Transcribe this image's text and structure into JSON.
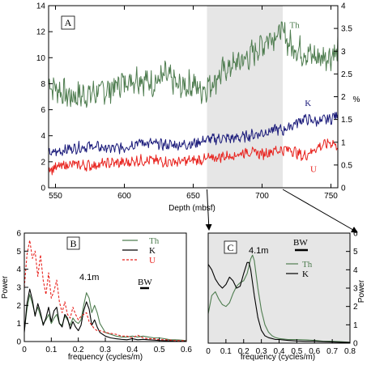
{
  "chart_data": [
    {
      "id": "A",
      "type": "line",
      "panel_label": "A",
      "xlabel": "Depth (mbsf)",
      "ylabel_left": "",
      "ylabel_right": "%",
      "xlim": [
        545,
        755
      ],
      "ylim_left": [
        0,
        14
      ],
      "ylim_right": [
        0,
        4
      ],
      "x_ticks": [
        550,
        600,
        650,
        700,
        750
      ],
      "y_ticks_left": [
        0,
        2,
        4,
        6,
        8,
        10,
        12,
        14
      ],
      "y_ticks_right": [
        0,
        0.5,
        1,
        1.5,
        2,
        2.5,
        3,
        3.5,
        4
      ],
      "shaded_range": [
        660,
        715
      ],
      "series": [
        {
          "name": "Th",
          "color": "#4f7d50",
          "axis": "left",
          "x": [
            545,
            560,
            575,
            590,
            600,
            610,
            620,
            630,
            640,
            650,
            655,
            660,
            665,
            670,
            680,
            690,
            700,
            705,
            710,
            715,
            720,
            730,
            740,
            750,
            755
          ],
          "y": [
            8.0,
            7.0,
            7.2,
            7.6,
            8.2,
            8.5,
            8.0,
            8.6,
            7.7,
            8.0,
            7.5,
            7.8,
            8.2,
            8.8,
            9.5,
            10.0,
            11.0,
            11.6,
            11.8,
            12.0,
            11.0,
            10.4,
            10.0,
            10.2,
            10.5
          ]
        },
        {
          "name": "K",
          "color": "#1a1a7a",
          "axis": "left",
          "x": [
            545,
            560,
            575,
            590,
            600,
            610,
            620,
            630,
            640,
            650,
            660,
            670,
            680,
            690,
            700,
            710,
            715,
            720,
            730,
            740,
            750,
            755
          ],
          "y": [
            2.6,
            3.0,
            3.2,
            3.0,
            3.1,
            3.5,
            3.4,
            3.3,
            3.3,
            3.4,
            3.7,
            3.8,
            3.8,
            4.0,
            4.2,
            4.5,
            4.4,
            4.7,
            5.3,
            5.1,
            5.3,
            5.7
          ]
        },
        {
          "name": "U",
          "color": "#e8231e",
          "axis": "left",
          "x": [
            545,
            560,
            575,
            590,
            600,
            610,
            620,
            630,
            640,
            650,
            660,
            670,
            680,
            690,
            700,
            710,
            715,
            720,
            730,
            740,
            750,
            755
          ],
          "y": [
            1.4,
            1.8,
            1.7,
            1.9,
            1.9,
            2.1,
            2.1,
            2.0,
            2.0,
            2.1,
            2.2,
            2.4,
            2.5,
            2.8,
            2.6,
            2.9,
            2.9,
            3.0,
            2.4,
            3.1,
            3.5,
            3.2
          ]
        }
      ],
      "annotations": [
        {
          "text": "Th",
          "x": 720,
          "y": 12.3,
          "color": "#4f7d50"
        },
        {
          "text": "K",
          "x": 731,
          "y": 6.3,
          "color": "#1a1a7a"
        },
        {
          "text": "U",
          "x": 735,
          "y": 1.2,
          "color": "#e8231e"
        }
      ]
    },
    {
      "id": "B",
      "type": "line",
      "panel_label": "B",
      "xlabel": "frequency (cycles/m)",
      "ylabel": "Power",
      "xlim": [
        0,
        0.6
      ],
      "ylim": [
        0,
        6
      ],
      "x_ticks": [
        0,
        0.1,
        0.2,
        0.3,
        0.4,
        0.5,
        0.6
      ],
      "y_ticks": [
        0,
        1,
        2,
        3,
        4,
        5,
        6
      ],
      "annotation": "4.1m",
      "bw_label": "BW",
      "legend": [
        "Th",
        "K",
        "U"
      ],
      "series": [
        {
          "name": "Th",
          "color": "#4f7d50",
          "dash": "",
          "x": [
            0,
            0.01,
            0.02,
            0.03,
            0.04,
            0.05,
            0.06,
            0.07,
            0.08,
            0.09,
            0.1,
            0.11,
            0.12,
            0.13,
            0.14,
            0.15,
            0.16,
            0.17,
            0.18,
            0.19,
            0.2,
            0.21,
            0.22,
            0.23,
            0.24,
            0.25,
            0.26,
            0.27,
            0.28,
            0.3,
            0.32,
            0.34,
            0.36,
            0.38,
            0.4,
            0.42,
            0.44,
            0.46,
            0.48,
            0.5,
            0.52,
            0.54,
            0.56,
            0.58,
            0.6
          ],
          "y": [
            0.6,
            1.8,
            2.6,
            2.1,
            1.5,
            1.9,
            1.4,
            1.0,
            1.2,
            1.5,
            1.0,
            1.3,
            1.5,
            1.0,
            0.9,
            1.4,
            1.2,
            0.9,
            1.3,
            1.1,
            1.0,
            1.2,
            2.0,
            2.7,
            2.4,
            1.6,
            2.0,
            1.6,
            1.0,
            0.5,
            0.4,
            0.3,
            0.25,
            0.25,
            0.3,
            0.25,
            0.3,
            0.25,
            0.2,
            0.2,
            0.15,
            0.1,
            0.1,
            0.08,
            0.05
          ]
        },
        {
          "name": "K",
          "color": "#000000",
          "dash": "",
          "x": [
            0,
            0.01,
            0.02,
            0.03,
            0.04,
            0.05,
            0.06,
            0.07,
            0.08,
            0.09,
            0.1,
            0.11,
            0.12,
            0.13,
            0.14,
            0.15,
            0.16,
            0.17,
            0.18,
            0.19,
            0.2,
            0.21,
            0.22,
            0.23,
            0.24,
            0.25,
            0.26,
            0.27,
            0.28,
            0.3,
            0.32,
            0.34,
            0.36,
            0.38,
            0.4,
            0.42,
            0.44,
            0.46,
            0.48,
            0.5,
            0.52,
            0.54,
            0.56,
            0.58,
            0.6
          ],
          "y": [
            0.5,
            2.1,
            2.9,
            2.3,
            1.4,
            2.1,
            1.6,
            0.9,
            1.3,
            1.9,
            1.1,
            1.7,
            1.9,
            1.0,
            0.8,
            1.5,
            1.3,
            0.7,
            1.1,
            0.8,
            0.6,
            0.9,
            1.7,
            2.2,
            1.8,
            0.9,
            1.2,
            0.8,
            0.5,
            0.3,
            0.2,
            0.15,
            0.12,
            0.1,
            0.15,
            0.1,
            0.12,
            0.1,
            0.08,
            0.06,
            0.05,
            0.04,
            0.03,
            0.02,
            0.02
          ]
        },
        {
          "name": "U",
          "color": "#e8231e",
          "dash": "3,2",
          "x": [
            0,
            0.01,
            0.02,
            0.03,
            0.04,
            0.05,
            0.06,
            0.07,
            0.08,
            0.09,
            0.1,
            0.11,
            0.12,
            0.13,
            0.14,
            0.15,
            0.16,
            0.17,
            0.18,
            0.19,
            0.2,
            0.21,
            0.22,
            0.23,
            0.24,
            0.25,
            0.26,
            0.27,
            0.28,
            0.3,
            0.32,
            0.34,
            0.36,
            0.38,
            0.4,
            0.42,
            0.44,
            0.46,
            0.48,
            0.5,
            0.52,
            0.54,
            0.56,
            0.58,
            0.6
          ],
          "y": [
            3.0,
            4.8,
            5.6,
            4.6,
            5.0,
            3.6,
            4.8,
            3.4,
            2.6,
            3.8,
            2.4,
            2.8,
            3.4,
            2.2,
            1.6,
            2.2,
            1.5,
            1.3,
            1.9,
            1.5,
            1.2,
            1.4,
            1.5,
            1.6,
            1.1,
            0.9,
            0.7,
            0.6,
            0.6,
            0.5,
            0.45,
            0.4,
            0.3,
            0.3,
            0.2,
            0.35,
            0.2,
            0.15,
            0.15,
            0.1,
            0.1,
            0.08,
            0.05,
            0.05,
            0.05
          ]
        }
      ]
    },
    {
      "id": "C",
      "type": "line",
      "panel_label": "C",
      "xlabel": "frequency (cycles/m)",
      "ylabel": "Power",
      "xlim": [
        0,
        0.8
      ],
      "ylim": [
        0,
        6
      ],
      "x_ticks": [
        0,
        0.1,
        0.2,
        0.3,
        0.4,
        0.5,
        0.6,
        0.7,
        0.8
      ],
      "y_ticks": [
        0,
        1,
        2,
        3,
        4,
        5,
        6
      ],
      "annotation": "4.1m",
      "bw_label": "BW",
      "legend": [
        "Th",
        "K"
      ],
      "background": "#e6e6e6",
      "series": [
        {
          "name": "Th",
          "color": "#4f7d50",
          "dash": "",
          "x": [
            0,
            0.02,
            0.04,
            0.06,
            0.08,
            0.1,
            0.12,
            0.14,
            0.16,
            0.18,
            0.2,
            0.22,
            0.24,
            0.25,
            0.26,
            0.28,
            0.3,
            0.32,
            0.34,
            0.36,
            0.38,
            0.4,
            0.45,
            0.5,
            0.55,
            0.6,
            0.65,
            0.7,
            0.75,
            0.8
          ],
          "y": [
            1.6,
            2.6,
            2.8,
            2.4,
            2.1,
            2.0,
            2.2,
            2.7,
            3.1,
            3.3,
            3.4,
            3.8,
            4.6,
            4.8,
            4.5,
            3.0,
            1.8,
            1.0,
            0.6,
            0.4,
            0.3,
            0.25,
            0.2,
            0.2,
            0.18,
            0.15,
            0.1,
            0.1,
            0.08,
            0.05
          ]
        },
        {
          "name": "K",
          "color": "#000000",
          "dash": "",
          "x": [
            0,
            0.02,
            0.04,
            0.06,
            0.08,
            0.1,
            0.12,
            0.14,
            0.16,
            0.18,
            0.2,
            0.22,
            0.23,
            0.24,
            0.26,
            0.28,
            0.3,
            0.32,
            0.34,
            0.36,
            0.38,
            0.4,
            0.45,
            0.5,
            0.55,
            0.6,
            0.65,
            0.7,
            0.75,
            0.8
          ],
          "y": [
            4.3,
            4.0,
            3.5,
            3.2,
            3.0,
            3.2,
            3.6,
            3.4,
            3.0,
            3.1,
            3.8,
            4.4,
            4.4,
            4.0,
            2.6,
            1.4,
            0.7,
            0.4,
            0.3,
            0.25,
            0.2,
            0.2,
            0.15,
            0.12,
            0.1,
            0.1,
            0.08,
            0.06,
            0.05,
            0.04
          ]
        }
      ]
    }
  ]
}
